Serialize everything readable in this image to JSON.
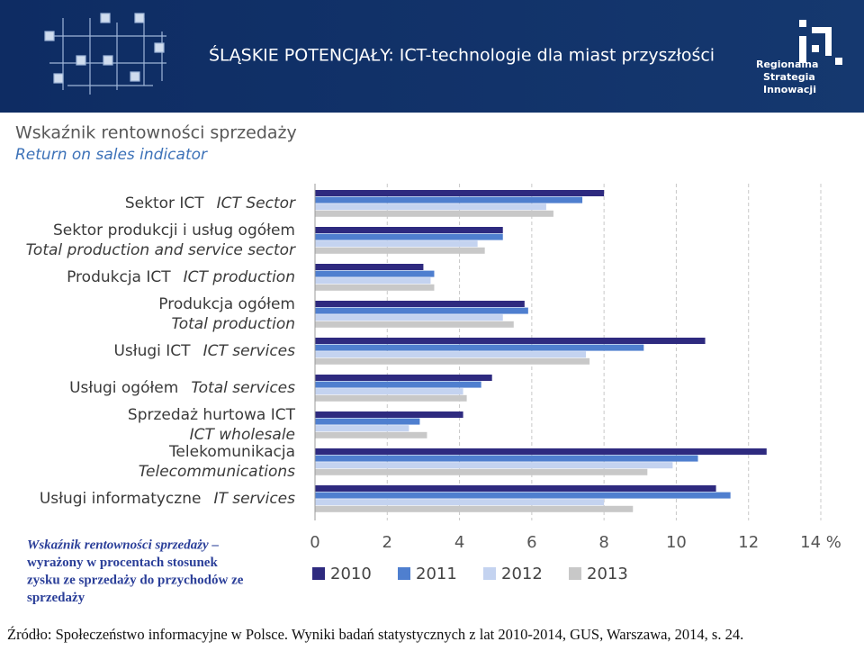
{
  "header": {
    "title": "ŚLĄSKIE POTENCJAŁY: ICT-technologie dla miast przyszłości",
    "logo": [
      "Regionalna",
      "Strategia",
      "Innowacji"
    ]
  },
  "footer": {
    "source": "Źródło: Społeczeństwo informacyjne w Polsce. Wyniki badań statystycznych z lat 2010-2014, GUS, Warszawa, 2014, s. 24.",
    "note": [
      "Wskaźnik rentowności sprzedaży –",
      "wyrażony w procentach stosunek",
      "zysku  ze sprzedaży do przychodów ze",
      "sprzedaży"
    ]
  },
  "chart_data": {
    "type": "hbar",
    "title": "Wskaźnik rentowności sprzedaży",
    "subtitle": "Return on sales indicator",
    "categories": [
      "Sektor ICT",
      "Sektor produkcji i usług ogółem",
      "Produkcja ICT",
      "Produkcja ogółem",
      "Usługi ICT",
      "Usługi ogółem",
      "Sprzedaż hurtowa ICT",
      "Telekomunikacja",
      "Usługi informatyczne"
    ],
    "categories_en": [
      "ICT Sector",
      "Total production and service sector",
      "ICT production",
      "Total production",
      "ICT services",
      "Total services",
      "ICT wholesale",
      "Telecommunications",
      "IT services"
    ],
    "series": [
      {
        "name": "2010",
        "color": "#2e2a7f",
        "values": [
          8.0,
          5.2,
          3.0,
          5.8,
          10.8,
          4.9,
          4.1,
          12.5,
          11.1
        ]
      },
      {
        "name": "2011",
        "color": "#4f7fcf",
        "values": [
          7.4,
          5.2,
          3.3,
          5.9,
          9.1,
          4.6,
          2.9,
          10.6,
          11.5
        ]
      },
      {
        "name": "2012",
        "color": "#c4d3f0",
        "values": [
          6.4,
          4.5,
          3.2,
          5.2,
          7.5,
          4.1,
          2.6,
          9.9,
          8.0
        ]
      },
      {
        "name": "2013",
        "color": "#c8c8c8",
        "values": [
          6.6,
          4.7,
          3.3,
          5.5,
          7.6,
          4.2,
          3.1,
          9.2,
          8.8
        ]
      }
    ],
    "xlim": [
      0,
      14
    ],
    "xticks": [
      0,
      2,
      4,
      6,
      8,
      10,
      12,
      {
        "value": 14,
        "label": "14 %"
      }
    ],
    "grid": true,
    "legend": "bottom"
  }
}
